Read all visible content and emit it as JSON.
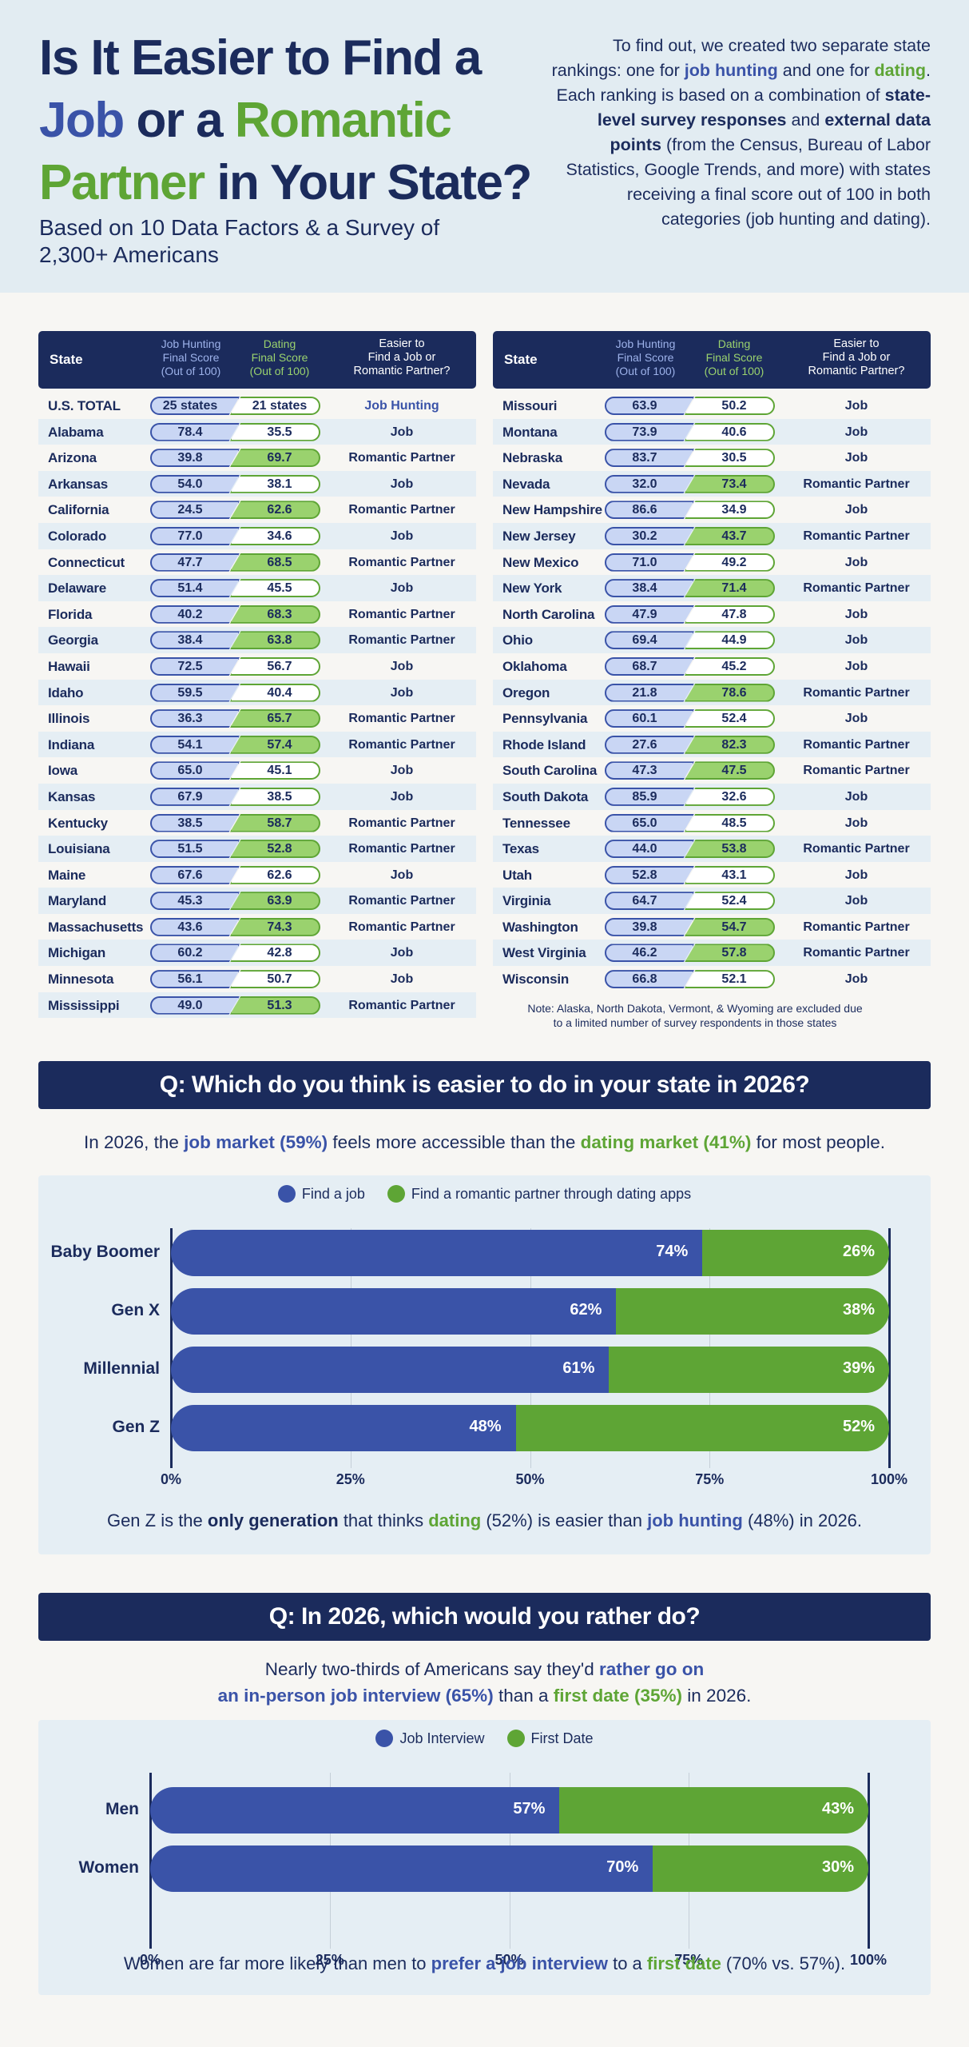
{
  "header": {
    "title_line1": "Is It Easier to Find a",
    "title_job": "Job",
    "title_or": " or a ",
    "title_romantic": "Romantic",
    "title_partner": "Partner",
    "title_tail": " in Your State?",
    "subtitle": "Based on 10 Data Factors & a Survey of 2,300+ Americans",
    "intro": [
      {
        "t": "To find out, we created two separate state rankings: one for ",
        "s": ""
      },
      {
        "t": "job hunting",
        "s": "bl"
      },
      {
        "t": " and one for ",
        "s": ""
      },
      {
        "t": "dating",
        "s": "gr"
      },
      {
        "t": ". Each ranking is based on a combination of ",
        "s": ""
      },
      {
        "t": "state-level survey responses",
        "s": "dk"
      },
      {
        "t": " and ",
        "s": ""
      },
      {
        "t": "external data points",
        "s": "dk"
      },
      {
        "t": " (from the Census, Bureau of Labor Statistics, Google Trends, and more) with states receiving a final score out of 100 in both categories (job hunting and dating).",
        "s": ""
      }
    ]
  },
  "table": {
    "col_state": "State",
    "col_job": [
      "Job Hunting",
      "Final Score",
      "(Out of 100)"
    ],
    "col_dating": [
      "Dating",
      "Final Score",
      "(Out of 100)"
    ],
    "col_easier": [
      "Easier to",
      "Find a Job or",
      "Romantic Partner?"
    ],
    "total": {
      "state": "U.S. TOTAL",
      "job": "25 states",
      "dating": "21 states",
      "easier": "Job Hunting"
    },
    "left": [
      {
        "state": "Alabama",
        "job": "78.4",
        "dating": "35.5",
        "easier": "Job"
      },
      {
        "state": "Arizona",
        "job": "39.8",
        "dating": "69.7",
        "easier": "Romantic Partner"
      },
      {
        "state": "Arkansas",
        "job": "54.0",
        "dating": "38.1",
        "easier": "Job"
      },
      {
        "state": "California",
        "job": "24.5",
        "dating": "62.6",
        "easier": "Romantic Partner"
      },
      {
        "state": "Colorado",
        "job": "77.0",
        "dating": "34.6",
        "easier": "Job"
      },
      {
        "state": "Connecticut",
        "job": "47.7",
        "dating": "68.5",
        "easier": "Romantic Partner"
      },
      {
        "state": "Delaware",
        "job": "51.4",
        "dating": "45.5",
        "easier": "Job"
      },
      {
        "state": "Florida",
        "job": "40.2",
        "dating": "68.3",
        "easier": "Romantic Partner"
      },
      {
        "state": "Georgia",
        "job": "38.4",
        "dating": "63.8",
        "easier": "Romantic Partner"
      },
      {
        "state": "Hawaii",
        "job": "72.5",
        "dating": "56.7",
        "easier": "Job"
      },
      {
        "state": "Idaho",
        "job": "59.5",
        "dating": "40.4",
        "easier": "Job"
      },
      {
        "state": "Illinois",
        "job": "36.3",
        "dating": "65.7",
        "easier": "Romantic Partner"
      },
      {
        "state": "Indiana",
        "job": "54.1",
        "dating": "57.4",
        "easier": "Romantic Partner"
      },
      {
        "state": "Iowa",
        "job": "65.0",
        "dating": "45.1",
        "easier": "Job"
      },
      {
        "state": "Kansas",
        "job": "67.9",
        "dating": "38.5",
        "easier": "Job"
      },
      {
        "state": "Kentucky",
        "job": "38.5",
        "dating": "58.7",
        "easier": "Romantic Partner"
      },
      {
        "state": "Louisiana",
        "job": "51.5",
        "dating": "52.8",
        "easier": "Romantic Partner"
      },
      {
        "state": "Maine",
        "job": "67.6",
        "dating": "62.6",
        "easier": "Job"
      },
      {
        "state": "Maryland",
        "job": "45.3",
        "dating": "63.9",
        "easier": "Romantic Partner"
      },
      {
        "state": "Massachusetts",
        "job": "43.6",
        "dating": "74.3",
        "easier": "Romantic Partner"
      },
      {
        "state": "Michigan",
        "job": "60.2",
        "dating": "42.8",
        "easier": "Job"
      },
      {
        "state": "Minnesota",
        "job": "56.1",
        "dating": "50.7",
        "easier": "Job"
      },
      {
        "state": "Mississippi",
        "job": "49.0",
        "dating": "51.3",
        "easier": "Romantic Partner"
      }
    ],
    "right": [
      {
        "state": "Missouri",
        "job": "63.9",
        "dating": "50.2",
        "easier": "Job"
      },
      {
        "state": "Montana",
        "job": "73.9",
        "dating": "40.6",
        "easier": "Job"
      },
      {
        "state": "Nebraska",
        "job": "83.7",
        "dating": "30.5",
        "easier": "Job"
      },
      {
        "state": "Nevada",
        "job": "32.0",
        "dating": "73.4",
        "easier": "Romantic Partner"
      },
      {
        "state": "New Hampshire",
        "job": "86.6",
        "dating": "34.9",
        "easier": "Job"
      },
      {
        "state": "New Jersey",
        "job": "30.2",
        "dating": "43.7",
        "easier": "Romantic Partner"
      },
      {
        "state": "New Mexico",
        "job": "71.0",
        "dating": "49.2",
        "easier": "Job"
      },
      {
        "state": "New York",
        "job": "38.4",
        "dating": "71.4",
        "easier": "Romantic Partner"
      },
      {
        "state": "North Carolina",
        "job": "47.9",
        "dating": "47.8",
        "easier": "Job"
      },
      {
        "state": "Ohio",
        "job": "69.4",
        "dating": "44.9",
        "easier": "Job"
      },
      {
        "state": "Oklahoma",
        "job": "68.7",
        "dating": "45.2",
        "easier": "Job"
      },
      {
        "state": "Oregon",
        "job": "21.8",
        "dating": "78.6",
        "easier": "Romantic Partner"
      },
      {
        "state": "Pennsylvania",
        "job": "60.1",
        "dating": "52.4",
        "easier": "Job"
      },
      {
        "state": "Rhode Island",
        "job": "27.6",
        "dating": "82.3",
        "easier": "Romantic Partner"
      },
      {
        "state": "South Carolina",
        "job": "47.3",
        "dating": "47.5",
        "easier": "Romantic Partner"
      },
      {
        "state": "South Dakota",
        "job": "85.9",
        "dating": "32.6",
        "easier": "Job"
      },
      {
        "state": "Tennessee",
        "job": "65.0",
        "dating": "48.5",
        "easier": "Job"
      },
      {
        "state": "Texas",
        "job": "44.0",
        "dating": "53.8",
        "easier": "Romantic Partner"
      },
      {
        "state": "Utah",
        "job": "52.8",
        "dating": "43.1",
        "easier": "Job"
      },
      {
        "state": "Virginia",
        "job": "64.7",
        "dating": "52.4",
        "easier": "Job"
      },
      {
        "state": "Washington",
        "job": "39.8",
        "dating": "54.7",
        "easier": "Romantic Partner"
      },
      {
        "state": "West Virginia",
        "job": "46.2",
        "dating": "57.8",
        "easier": "Romantic Partner"
      },
      {
        "state": "Wisconsin",
        "job": "66.8",
        "dating": "52.1",
        "easier": "Job"
      }
    ],
    "note": "Note: Alaska, North Dakota, Vermont, & Wyoming are excluded due to a limited number of survey respondents in those states"
  },
  "q1": {
    "banner": "Q: Which do you think is easier to do in your state in 2026?",
    "lead": [
      {
        "t": "In 2026, the ",
        "s": ""
      },
      {
        "t": "job market (59%)",
        "s": "bl"
      },
      {
        "t": " feels more accessible than the ",
        "s": ""
      },
      {
        "t": "dating market (41%)",
        "s": "gr"
      },
      {
        "t": " for most people.",
        "s": ""
      }
    ],
    "foot": [
      {
        "t": "Gen Z is the ",
        "s": ""
      },
      {
        "t": "only generation",
        "s": "dk"
      },
      {
        "t": " that thinks ",
        "s": ""
      },
      {
        "t": "dating",
        "s": "gr"
      },
      {
        "t": " (52%) is easier than ",
        "s": ""
      },
      {
        "t": "job hunting",
        "s": "bl"
      },
      {
        "t": " (48%) in 2026.",
        "s": ""
      }
    ]
  },
  "q2": {
    "banner": "Q: In 2026, which would you rather do?",
    "lead_line1": [
      {
        "t": "Nearly two-thirds of Americans say they'd ",
        "s": ""
      },
      {
        "t": "rather go on",
        "s": "bl"
      }
    ],
    "lead_line2": [
      {
        "t": "an in-person job interview (65%)",
        "s": "bl"
      },
      {
        "t": " than a ",
        "s": ""
      },
      {
        "t": "first date (35%)",
        "s": "gr"
      },
      {
        "t": " in 2026.",
        "s": ""
      }
    ],
    "foot": [
      {
        "t": "Women are far more likely than men to ",
        "s": ""
      },
      {
        "t": "prefer a job interview",
        "s": "bl"
      },
      {
        "t": " to a ",
        "s": ""
      },
      {
        "t": "first date",
        "s": "gr"
      },
      {
        "t": " (70% vs. 57%).",
        "s": ""
      }
    ]
  },
  "colors": {
    "navy": "#1b2b5c",
    "blue": "#3a53a8",
    "green": "#5ea535",
    "light_blue": "#c9d6f4",
    "light_green": "#9ad26e"
  },
  "chart_data": [
    {
      "type": "bar",
      "orientation": "horizontal",
      "stacked": true,
      "categories": [
        "Baby Boomer",
        "Gen X",
        "Millennial",
        "Gen Z"
      ],
      "series": [
        {
          "name": "Find a job",
          "values": [
            74,
            62,
            61,
            48
          ],
          "color": "#3a53a8"
        },
        {
          "name": "Find a romantic partner through dating apps",
          "values": [
            26,
            38,
            39,
            52
          ],
          "color": "#5ea535"
        }
      ],
      "value_suffix": "%",
      "xlim": [
        0,
        100
      ],
      "xticks": [
        "0%",
        "25%",
        "50%",
        "75%",
        "100%"
      ],
      "legend": "top-center",
      "grid": true
    },
    {
      "type": "bar",
      "orientation": "horizontal",
      "stacked": true,
      "categories": [
        "Men",
        "Women"
      ],
      "series": [
        {
          "name": "Job Interview",
          "values": [
            57,
            70
          ],
          "color": "#3a53a8"
        },
        {
          "name": "First Date",
          "values": [
            43,
            30
          ],
          "color": "#5ea535"
        }
      ],
      "value_suffix": "%",
      "xlim": [
        0,
        100
      ],
      "xticks": [
        "0%",
        "25%",
        "50%",
        "75%",
        "100%"
      ],
      "legend": "top-center",
      "grid": true
    }
  ]
}
